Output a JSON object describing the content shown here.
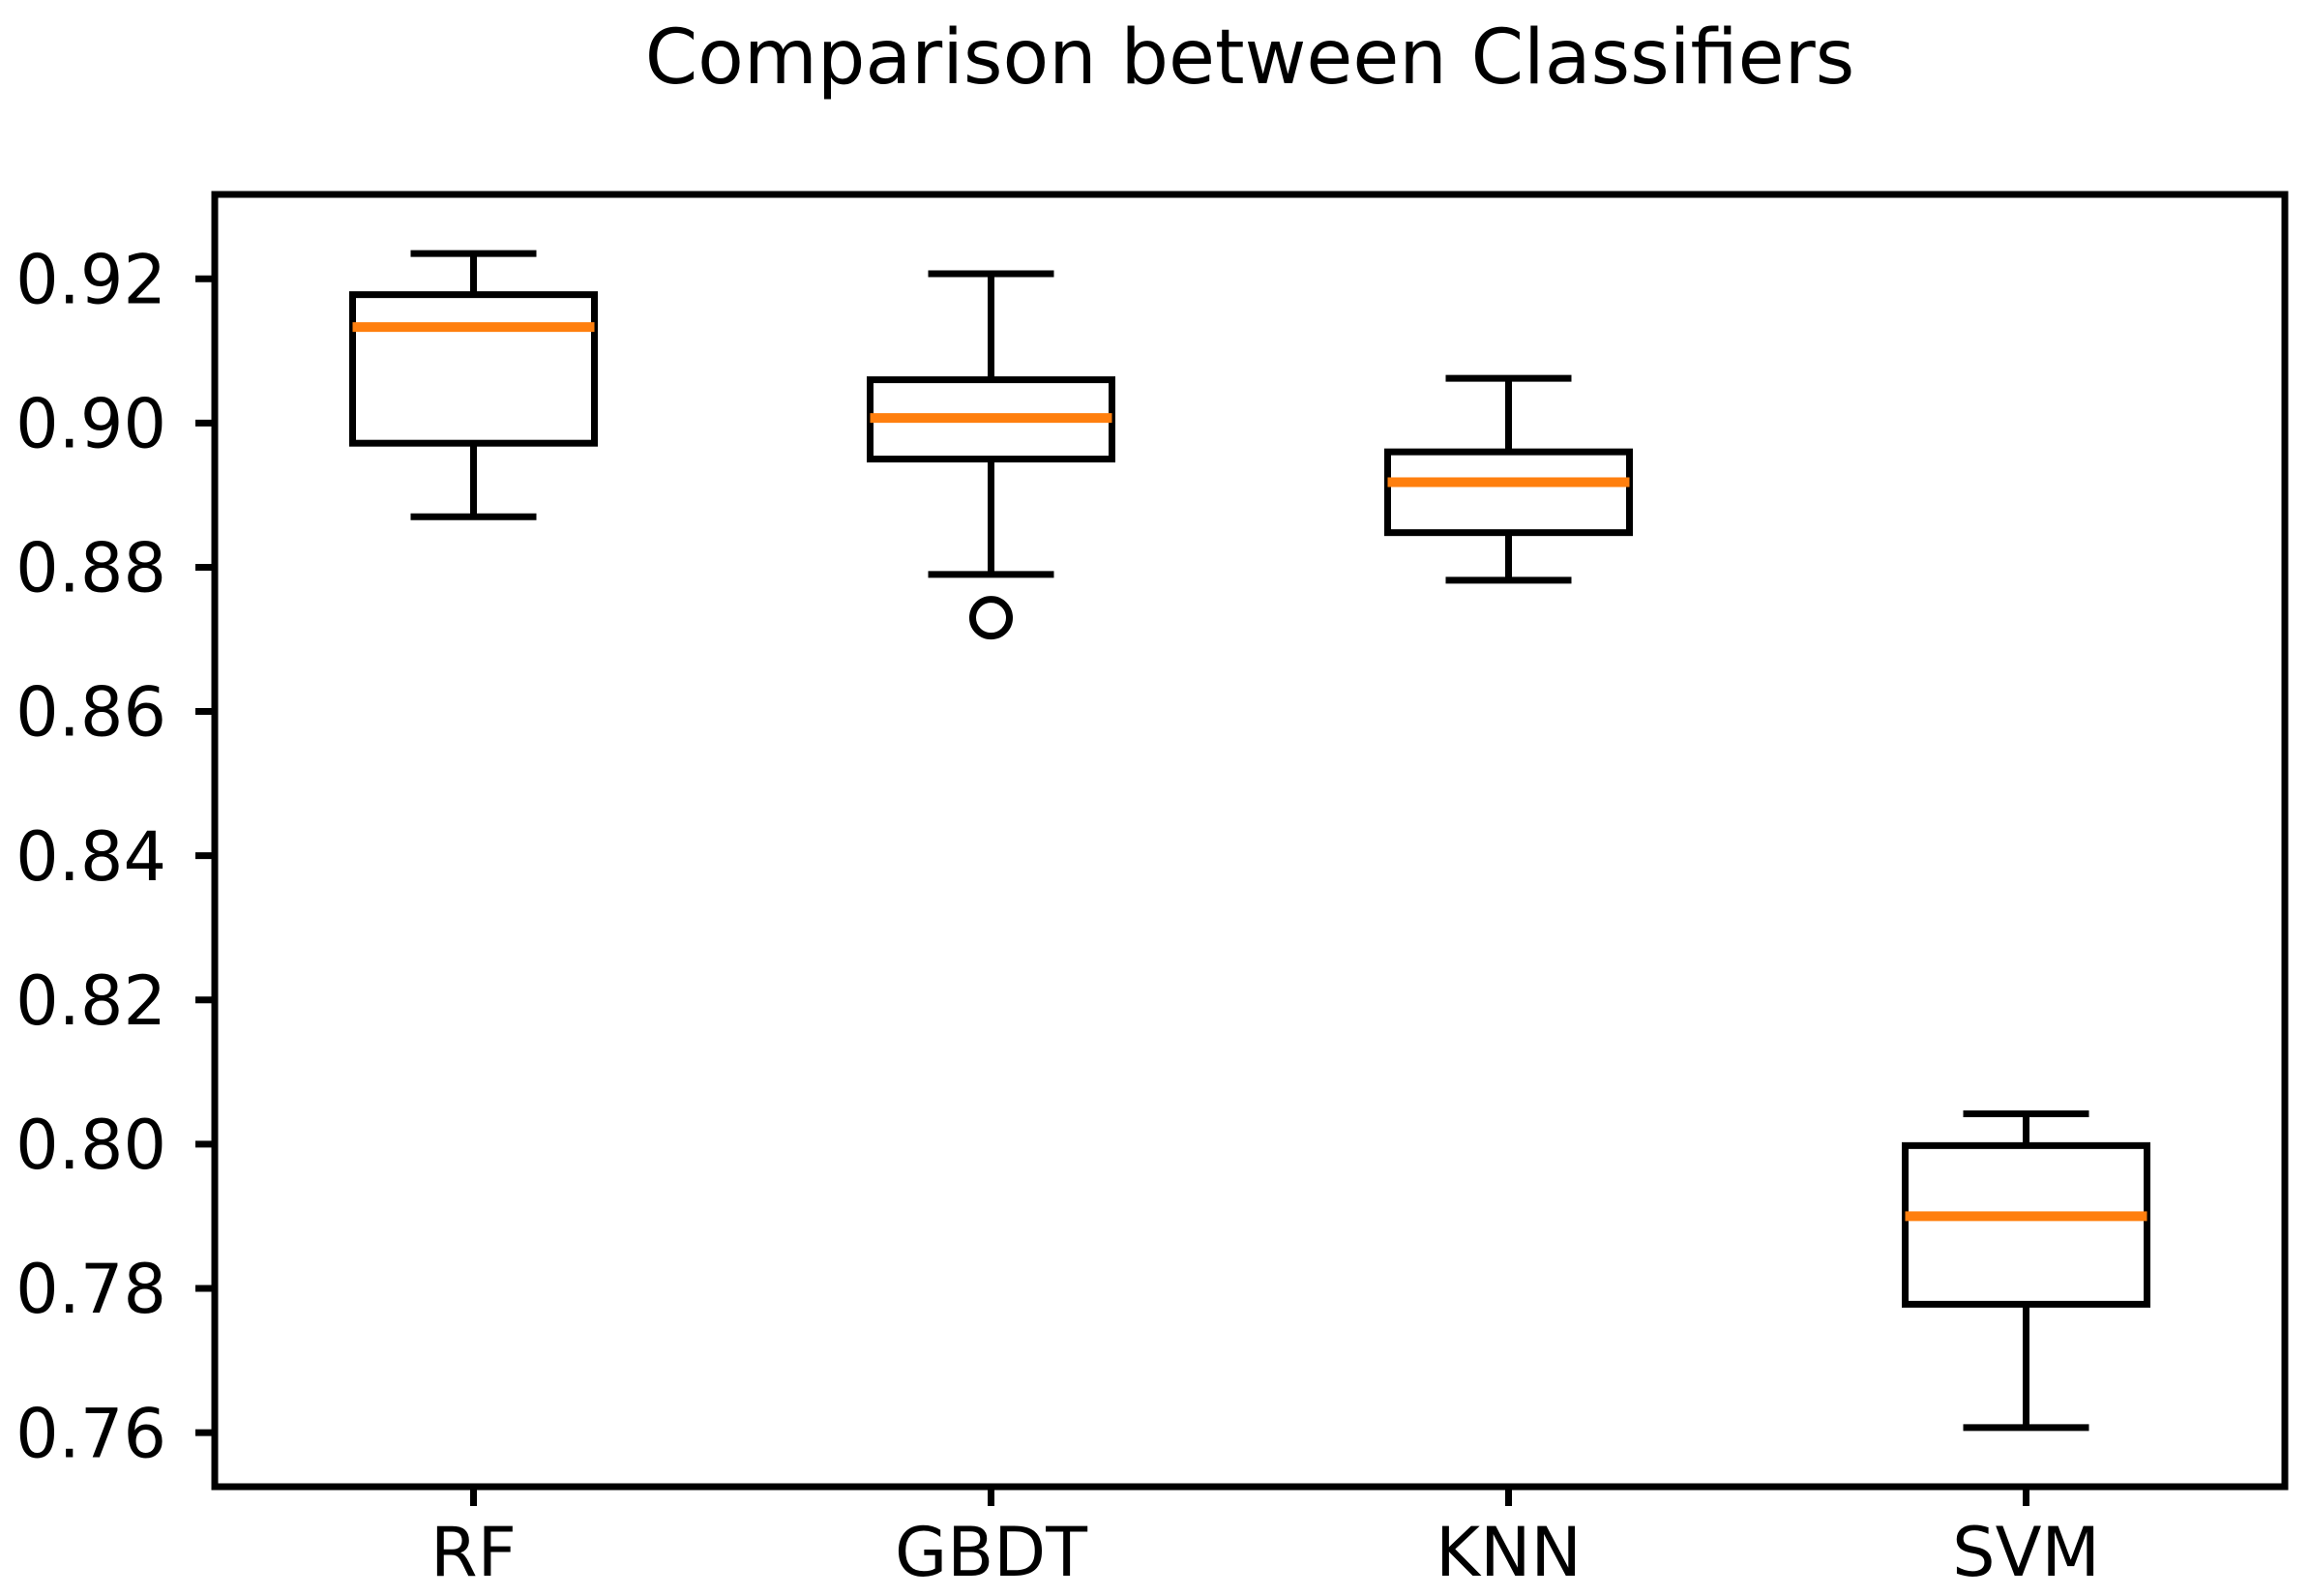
{
  "chart_data": {
    "type": "box",
    "title": "Comparison between Classifiers",
    "xlabel": "",
    "ylabel": "",
    "categories": [
      "RF",
      "GBDT",
      "KNN",
      "SVM"
    ],
    "series": [
      {
        "name": "RF",
        "whisker_low": 0.887,
        "q1": 0.8972,
        "median": 0.9133,
        "q3": 0.9178,
        "whisker_high": 0.9235,
        "outliers": []
      },
      {
        "name": "GBDT",
        "whisker_low": 0.879,
        "q1": 0.895,
        "median": 0.9007,
        "q3": 0.906,
        "whisker_high": 0.9207,
        "outliers": [
          0.873
        ]
      },
      {
        "name": "KNN",
        "whisker_low": 0.8782,
        "q1": 0.8848,
        "median": 0.8918,
        "q3": 0.896,
        "whisker_high": 0.9062,
        "outliers": []
      },
      {
        "name": "SVM",
        "whisker_low": 0.7607,
        "q1": 0.7778,
        "median": 0.79,
        "q3": 0.7998,
        "whisker_high": 0.8042,
        "outliers": []
      }
    ],
    "y_ticks": [
      {
        "value": 0.92,
        "label": "0.92"
      },
      {
        "value": 0.9,
        "label": "0.90"
      },
      {
        "value": 0.88,
        "label": "0.88"
      },
      {
        "value": 0.86,
        "label": "0.86"
      },
      {
        "value": 0.84,
        "label": "0.84"
      },
      {
        "value": 0.82,
        "label": "0.82"
      },
      {
        "value": 0.8,
        "label": "0.80"
      },
      {
        "value": 0.78,
        "label": "0.78"
      },
      {
        "value": 0.76,
        "label": "0.76"
      }
    ],
    "ylim": [
      0.7525,
      0.9317
    ],
    "grid": false,
    "legend": "none",
    "colors": {
      "line": "#000000",
      "median": "#ff7f0e",
      "text": "#000000",
      "box_fill": "#ffffff",
      "background": "#ffffff"
    }
  }
}
